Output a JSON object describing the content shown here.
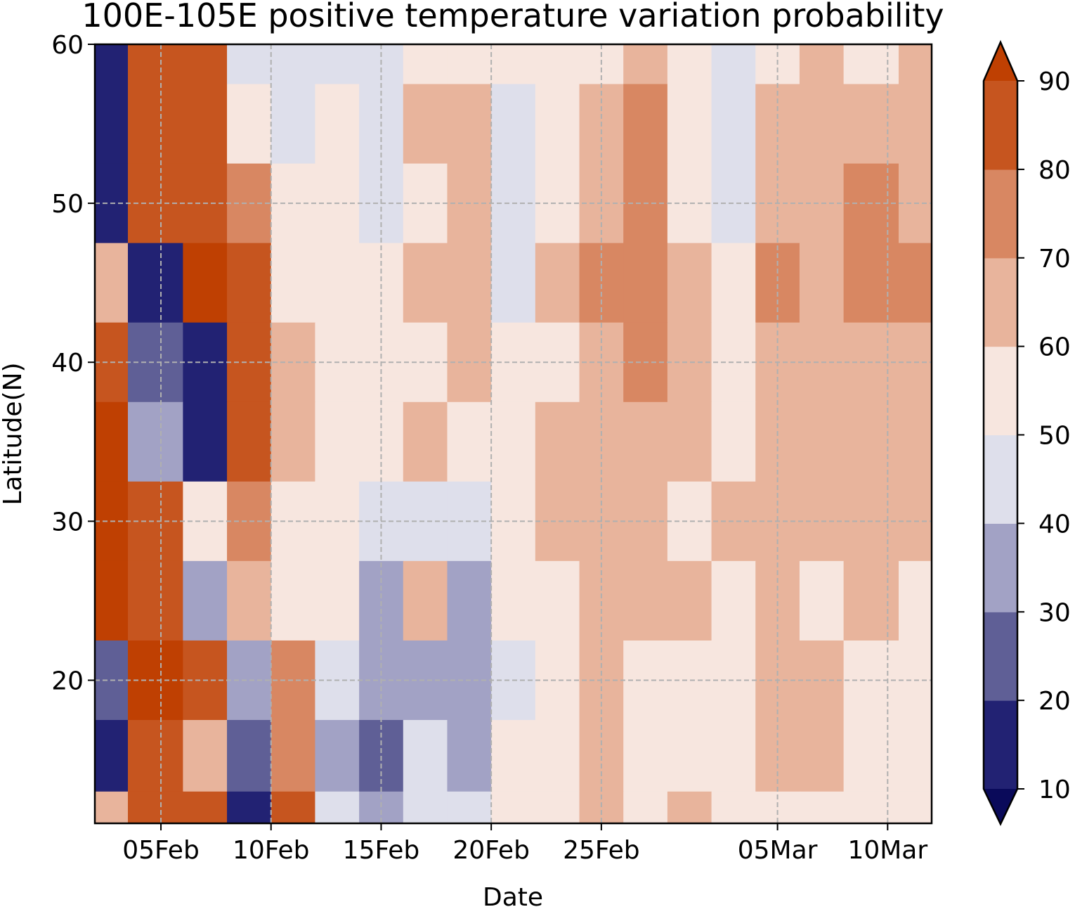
{
  "chart_data": {
    "type": "heatmap",
    "title": "100E-105E positive temperature variation probability",
    "xlabel": "Date",
    "ylabel": "Latitude(N)",
    "x_ticks": [
      "05Feb",
      "10Feb",
      "15Feb",
      "20Feb",
      "25Feb",
      "05Mar",
      "10Mar"
    ],
    "x_tick_dates": [
      "2019-02-05",
      "2019-02-10",
      "2019-02-15",
      "2019-02-20",
      "2019-02-25",
      "2019-03-05",
      "2019-03-10"
    ],
    "xlim": [
      "2019-02-02",
      "2019-03-12"
    ],
    "y_ticks": [
      20,
      30,
      40,
      50,
      60
    ],
    "ylim": [
      11,
      60
    ],
    "grid": true,
    "colorbar": {
      "levels": [
        10,
        20,
        30,
        40,
        50,
        60,
        70,
        80,
        90
      ],
      "tick_labels": [
        "10",
        "20",
        "30",
        "40",
        "50",
        "60",
        "70",
        "80",
        "90"
      ],
      "extend": "both",
      "colors": [
        "#0a0a5a",
        "#222273",
        "#5f5f96",
        "#a2a2c5",
        "#dedfeb",
        "#f7e6df",
        "#e8b49c",
        "#d88762",
        "#c6551f",
        "#bf4002"
      ],
      "placement": "right"
    },
    "x": [
      "2019-02-02",
      "2019-02-05",
      "2019-02-07",
      "2019-02-09",
      "2019-02-11",
      "2019-02-13",
      "2019-02-15",
      "2019-02-17",
      "2019-02-19",
      "2019-02-21",
      "2019-02-23",
      "2019-02-25",
      "2019-02-27",
      "2019-03-01",
      "2019-03-03",
      "2019-03-05",
      "2019-03-07",
      "2019-03-09",
      "2019-03-12"
    ],
    "y": [
      60,
      55,
      50,
      45,
      40,
      35,
      30,
      25,
      20,
      15,
      11
    ],
    "values": [
      [
        10,
        88,
        88,
        45,
        40,
        45,
        45,
        55,
        58,
        50,
        55,
        58,
        65,
        55,
        45,
        55,
        60,
        55,
        62
      ],
      [
        10,
        88,
        85,
        50,
        45,
        55,
        45,
        60,
        65,
        45,
        55,
        60,
        75,
        50,
        40,
        60,
        62,
        65,
        60
      ],
      [
        10,
        88,
        88,
        75,
        55,
        55,
        45,
        55,
        60,
        40,
        55,
        65,
        75,
        55,
        45,
        60,
        62,
        75,
        65
      ],
      [
        60,
        15,
        92,
        85,
        55,
        55,
        55,
        60,
        62,
        45,
        62,
        70,
        72,
        60,
        55,
        70,
        60,
        75,
        72
      ],
      [
        88,
        25,
        10,
        88,
        60,
        55,
        50,
        55,
        60,
        55,
        55,
        62,
        72,
        60,
        55,
        65,
        60,
        65,
        62
      ],
      [
        92,
        30,
        15,
        82,
        62,
        55,
        52,
        65,
        52,
        55,
        62,
        65,
        65,
        62,
        55,
        60,
        60,
        62,
        60
      ],
      [
        92,
        88,
        55,
        78,
        55,
        55,
        40,
        45,
        40,
        55,
        60,
        62,
        60,
        58,
        60,
        62,
        60,
        62,
        60
      ],
      [
        90,
        88,
        30,
        62,
        50,
        55,
        38,
        60,
        35,
        55,
        58,
        62,
        60,
        65,
        55,
        65,
        58,
        60,
        58
      ],
      [
        25,
        92,
        88,
        30,
        75,
        45,
        30,
        35,
        30,
        45,
        58,
        60,
        58,
        55,
        50,
        60,
        62,
        55,
        58
      ],
      [
        10,
        88,
        65,
        20,
        70,
        35,
        25,
        40,
        35,
        50,
        55,
        62,
        55,
        55,
        50,
        60,
        60,
        58,
        55
      ],
      [
        65,
        85,
        88,
        15,
        85,
        40,
        30,
        45,
        40,
        50,
        55,
        62,
        55,
        60,
        52,
        55,
        58,
        55,
        58
      ]
    ]
  }
}
